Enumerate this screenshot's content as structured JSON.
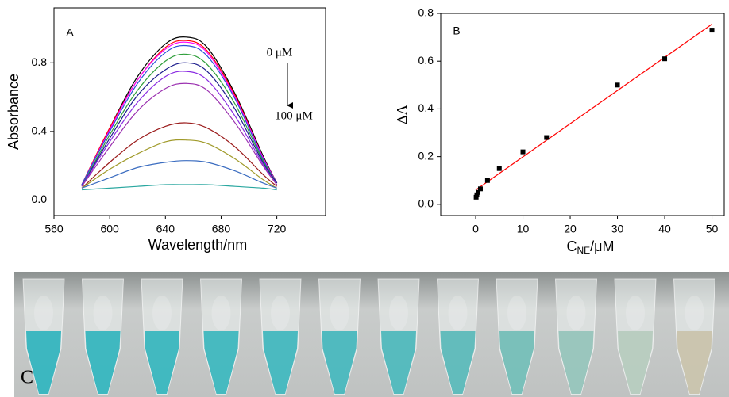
{
  "chart_data": [
    {
      "type": "line",
      "panel_label": "A",
      "x_label": "Wavelength/nm",
      "y_label": "Absorbance",
      "annotations": {
        "top": "0 μM",
        "bottom": "100 μM"
      },
      "x": [
        580,
        600,
        620,
        640,
        655,
        670,
        690,
        710,
        720
      ],
      "series": [
        {
          "color": "#000000",
          "values": [
            0.09,
            0.42,
            0.72,
            0.91,
            0.95,
            0.89,
            0.62,
            0.26,
            0.1
          ]
        },
        {
          "color": "#ff0000",
          "values": [
            0.09,
            0.42,
            0.7,
            0.89,
            0.93,
            0.87,
            0.61,
            0.25,
            0.1
          ]
        },
        {
          "color": "#ff00ff",
          "values": [
            0.09,
            0.41,
            0.7,
            0.88,
            0.92,
            0.86,
            0.6,
            0.25,
            0.1
          ]
        },
        {
          "color": "#2b4fd6",
          "values": [
            0.09,
            0.4,
            0.68,
            0.86,
            0.9,
            0.84,
            0.59,
            0.24,
            0.1
          ]
        },
        {
          "color": "#2e9e3a",
          "values": [
            0.08,
            0.38,
            0.64,
            0.81,
            0.85,
            0.79,
            0.56,
            0.23,
            0.1
          ]
        },
        {
          "color": "#1c1c8c",
          "values": [
            0.08,
            0.36,
            0.61,
            0.76,
            0.8,
            0.75,
            0.53,
            0.22,
            0.1
          ]
        },
        {
          "color": "#8a2be2",
          "values": [
            0.08,
            0.34,
            0.57,
            0.72,
            0.75,
            0.7,
            0.49,
            0.21,
            0.09
          ]
        },
        {
          "color": "#9b30b0",
          "values": [
            0.08,
            0.31,
            0.52,
            0.65,
            0.68,
            0.64,
            0.45,
            0.2,
            0.09
          ]
        },
        {
          "color": "#9b1c1c",
          "values": [
            0.07,
            0.22,
            0.35,
            0.43,
            0.45,
            0.42,
            0.31,
            0.15,
            0.08
          ]
        },
        {
          "color": "#a09a2a",
          "values": [
            0.07,
            0.18,
            0.27,
            0.34,
            0.35,
            0.33,
            0.24,
            0.12,
            0.07
          ]
        },
        {
          "color": "#3a6cc0",
          "values": [
            0.07,
            0.13,
            0.19,
            0.22,
            0.23,
            0.22,
            0.17,
            0.1,
            0.07
          ]
        },
        {
          "color": "#2aa7a0",
          "values": [
            0.06,
            0.07,
            0.08,
            0.09,
            0.09,
            0.09,
            0.08,
            0.07,
            0.06
          ]
        }
      ],
      "xlim": [
        560,
        755
      ],
      "xticks": [
        560,
        600,
        640,
        680,
        720
      ],
      "ylim": [
        -0.09,
        1.12
      ],
      "yticks": [
        {
          "value": 0,
          "label": "0.0"
        },
        0.4,
        0.8
      ]
    },
    {
      "type": "scatter",
      "panel_label": "B",
      "x_label": {
        "main": "C",
        "sub": "NE",
        "rest": "/μM"
      },
      "y_label": "ΔA",
      "x": [
        0.1,
        0.25,
        0.5,
        1,
        2.5,
        5,
        10,
        15,
        30,
        40,
        50
      ],
      "values": [
        0.03,
        0.04,
        0.05,
        0.065,
        0.1,
        0.15,
        0.22,
        0.28,
        0.5,
        0.61,
        0.73
      ],
      "color": "#000000",
      "fit_line": {
        "x": [
          0,
          50
        ],
        "values": [
          0.06,
          0.755
        ],
        "color": "#ff0000"
      },
      "xlim": [
        -7.4,
        52.6
      ],
      "xticks": [
        0,
        10,
        20,
        30,
        40,
        50
      ],
      "ylim": [
        -0.047,
        0.8
      ],
      "yticks": [
        {
          "value": 0,
          "label": "0.0"
        },
        0.2,
        0.4,
        0.6,
        0.8
      ]
    }
  ],
  "panel_c": {
    "label": "C"
  }
}
